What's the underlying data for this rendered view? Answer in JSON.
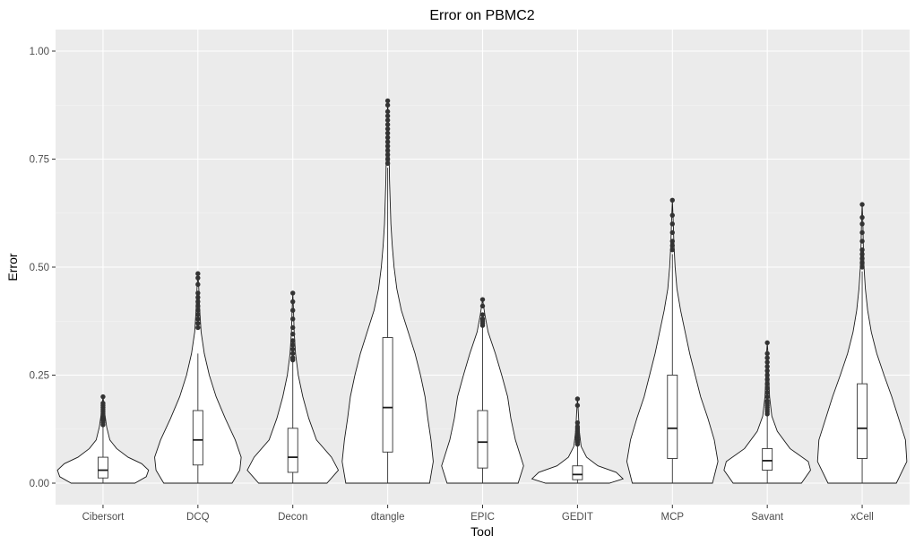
{
  "chart_data": {
    "type": "violin",
    "title": "Error on PBMC2",
    "xlabel": "Tool",
    "ylabel": "Error",
    "ylim": [
      0,
      1
    ],
    "y_ticks": [
      "0.00",
      "0.25",
      "0.50",
      "0.75",
      "1.00"
    ],
    "y_tick_values": [
      0,
      0.25,
      0.5,
      0.75,
      1.0
    ],
    "grid": true,
    "categories": [
      "Cibersort",
      "DCQ",
      "Decon",
      "dtangle",
      "EPIC",
      "GEDIT",
      "MCP",
      "Savant",
      "xCell"
    ],
    "series": [
      {
        "category": "Cibersort",
        "min": 0.0,
        "q1": 0.012,
        "median": 0.03,
        "q3": 0.06,
        "whisker_high": 0.13,
        "max": 0.2,
        "density": [
          [
            0.0,
            0.7
          ],
          [
            0.015,
            0.95
          ],
          [
            0.03,
            1.0
          ],
          [
            0.045,
            0.85
          ],
          [
            0.06,
            0.55
          ],
          [
            0.08,
            0.3
          ],
          [
            0.1,
            0.15
          ],
          [
            0.13,
            0.08
          ],
          [
            0.16,
            0.04
          ],
          [
            0.2,
            0.0
          ]
        ],
        "outliers": [
          0.135,
          0.14,
          0.145,
          0.15,
          0.155,
          0.16,
          0.165,
          0.17,
          0.175,
          0.18,
          0.185,
          0.2
        ]
      },
      {
        "category": "DCQ",
        "min": 0.0,
        "q1": 0.042,
        "median": 0.1,
        "q3": 0.168,
        "whisker_high": 0.3,
        "max": 0.485,
        "density": [
          [
            0.0,
            0.75
          ],
          [
            0.03,
            0.92
          ],
          [
            0.06,
            0.95
          ],
          [
            0.1,
            0.82
          ],
          [
            0.15,
            0.6
          ],
          [
            0.2,
            0.4
          ],
          [
            0.25,
            0.25
          ],
          [
            0.3,
            0.14
          ],
          [
            0.35,
            0.07
          ],
          [
            0.4,
            0.04
          ],
          [
            0.45,
            0.02
          ],
          [
            0.485,
            0.0
          ]
        ],
        "outliers": [
          0.36,
          0.37,
          0.38,
          0.39,
          0.4,
          0.41,
          0.42,
          0.43,
          0.44,
          0.46,
          0.475,
          0.485
        ]
      },
      {
        "category": "Decon",
        "min": 0.0,
        "q1": 0.025,
        "median": 0.06,
        "q3": 0.127,
        "whisker_high": 0.28,
        "max": 0.44,
        "density": [
          [
            0.0,
            0.75
          ],
          [
            0.03,
            1.0
          ],
          [
            0.06,
            0.85
          ],
          [
            0.1,
            0.52
          ],
          [
            0.15,
            0.35
          ],
          [
            0.2,
            0.22
          ],
          [
            0.25,
            0.12
          ],
          [
            0.3,
            0.06
          ],
          [
            0.35,
            0.03
          ],
          [
            0.4,
            0.015
          ],
          [
            0.44,
            0.0
          ]
        ],
        "outliers": [
          0.285,
          0.29,
          0.3,
          0.31,
          0.32,
          0.33,
          0.345,
          0.36,
          0.38,
          0.4,
          0.42,
          0.44
        ]
      },
      {
        "category": "dtangle",
        "min": 0.0,
        "q1": 0.072,
        "median": 0.175,
        "q3": 0.337,
        "whisker_high": 0.73,
        "max": 0.885,
        "density": [
          [
            0.0,
            0.92
          ],
          [
            0.05,
            1.0
          ],
          [
            0.1,
            0.95
          ],
          [
            0.15,
            0.88
          ],
          [
            0.2,
            0.82
          ],
          [
            0.25,
            0.72
          ],
          [
            0.3,
            0.6
          ],
          [
            0.35,
            0.45
          ],
          [
            0.4,
            0.3
          ],
          [
            0.45,
            0.2
          ],
          [
            0.5,
            0.14
          ],
          [
            0.55,
            0.1
          ],
          [
            0.6,
            0.07
          ],
          [
            0.7,
            0.04
          ],
          [
            0.8,
            0.025
          ],
          [
            0.885,
            0.0
          ]
        ],
        "outliers": [
          0.74,
          0.75,
          0.76,
          0.77,
          0.78,
          0.79,
          0.8,
          0.81,
          0.82,
          0.83,
          0.84,
          0.85,
          0.86,
          0.875,
          0.885
        ]
      },
      {
        "category": "EPIC",
        "min": 0.0,
        "q1": 0.035,
        "median": 0.095,
        "q3": 0.168,
        "whisker_high": 0.36,
        "max": 0.425,
        "density": [
          [
            0.0,
            0.78
          ],
          [
            0.04,
            0.9
          ],
          [
            0.1,
            0.72
          ],
          [
            0.15,
            0.62
          ],
          [
            0.2,
            0.55
          ],
          [
            0.25,
            0.42
          ],
          [
            0.3,
            0.28
          ],
          [
            0.35,
            0.12
          ],
          [
            0.39,
            0.05
          ],
          [
            0.425,
            0.0
          ]
        ],
        "outliers": [
          0.365,
          0.37,
          0.375,
          0.38,
          0.39,
          0.41,
          0.425
        ]
      },
      {
        "category": "GEDIT",
        "min": 0.0,
        "q1": 0.008,
        "median": 0.02,
        "q3": 0.04,
        "whisker_high": 0.085,
        "max": 0.195,
        "density": [
          [
            0.0,
            0.7
          ],
          [
            0.01,
            1.0
          ],
          [
            0.025,
            0.85
          ],
          [
            0.04,
            0.45
          ],
          [
            0.06,
            0.2
          ],
          [
            0.085,
            0.08
          ],
          [
            0.12,
            0.04
          ],
          [
            0.16,
            0.02
          ],
          [
            0.195,
            0.0
          ]
        ],
        "outliers": [
          0.09,
          0.095,
          0.1,
          0.105,
          0.11,
          0.115,
          0.12,
          0.125,
          0.13,
          0.14,
          0.18,
          0.195
        ]
      },
      {
        "category": "MCP",
        "min": 0.0,
        "q1": 0.057,
        "median": 0.127,
        "q3": 0.25,
        "whisker_high": 0.53,
        "max": 0.655,
        "density": [
          [
            0.0,
            0.88
          ],
          [
            0.05,
            1.0
          ],
          [
            0.1,
            0.92
          ],
          [
            0.15,
            0.78
          ],
          [
            0.2,
            0.62
          ],
          [
            0.25,
            0.5
          ],
          [
            0.3,
            0.38
          ],
          [
            0.35,
            0.28
          ],
          [
            0.4,
            0.18
          ],
          [
            0.45,
            0.1
          ],
          [
            0.5,
            0.06
          ],
          [
            0.55,
            0.035
          ],
          [
            0.6,
            0.02
          ],
          [
            0.655,
            0.0
          ]
        ],
        "outliers": [
          0.54,
          0.55,
          0.56,
          0.58,
          0.6,
          0.62,
          0.655
        ]
      },
      {
        "category": "Savant",
        "min": 0.0,
        "q1": 0.03,
        "median": 0.052,
        "q3": 0.08,
        "whisker_high": 0.155,
        "max": 0.325,
        "density": [
          [
            0.0,
            0.75
          ],
          [
            0.03,
            0.95
          ],
          [
            0.05,
            0.9
          ],
          [
            0.08,
            0.5
          ],
          [
            0.12,
            0.22
          ],
          [
            0.155,
            0.1
          ],
          [
            0.2,
            0.05
          ],
          [
            0.25,
            0.03
          ],
          [
            0.3,
            0.015
          ],
          [
            0.325,
            0.0
          ]
        ],
        "outliers": [
          0.16,
          0.165,
          0.17,
          0.175,
          0.18,
          0.185,
          0.19,
          0.2,
          0.21,
          0.22,
          0.23,
          0.24,
          0.25,
          0.26,
          0.27,
          0.28,
          0.29,
          0.3,
          0.325
        ]
      },
      {
        "category": "xCell",
        "min": 0.0,
        "q1": 0.057,
        "median": 0.127,
        "q3": 0.23,
        "whisker_high": 0.49,
        "max": 0.645,
        "density": [
          [
            0.0,
            0.75
          ],
          [
            0.05,
            0.98
          ],
          [
            0.1,
            0.95
          ],
          [
            0.15,
            0.8
          ],
          [
            0.2,
            0.65
          ],
          [
            0.25,
            0.48
          ],
          [
            0.3,
            0.32
          ],
          [
            0.35,
            0.2
          ],
          [
            0.4,
            0.12
          ],
          [
            0.45,
            0.07
          ],
          [
            0.5,
            0.04
          ],
          [
            0.55,
            0.025
          ],
          [
            0.6,
            0.015
          ],
          [
            0.645,
            0.0
          ]
        ],
        "outliers": [
          0.5,
          0.51,
          0.52,
          0.53,
          0.54,
          0.56,
          0.58,
          0.6,
          0.615,
          0.645
        ]
      }
    ]
  }
}
